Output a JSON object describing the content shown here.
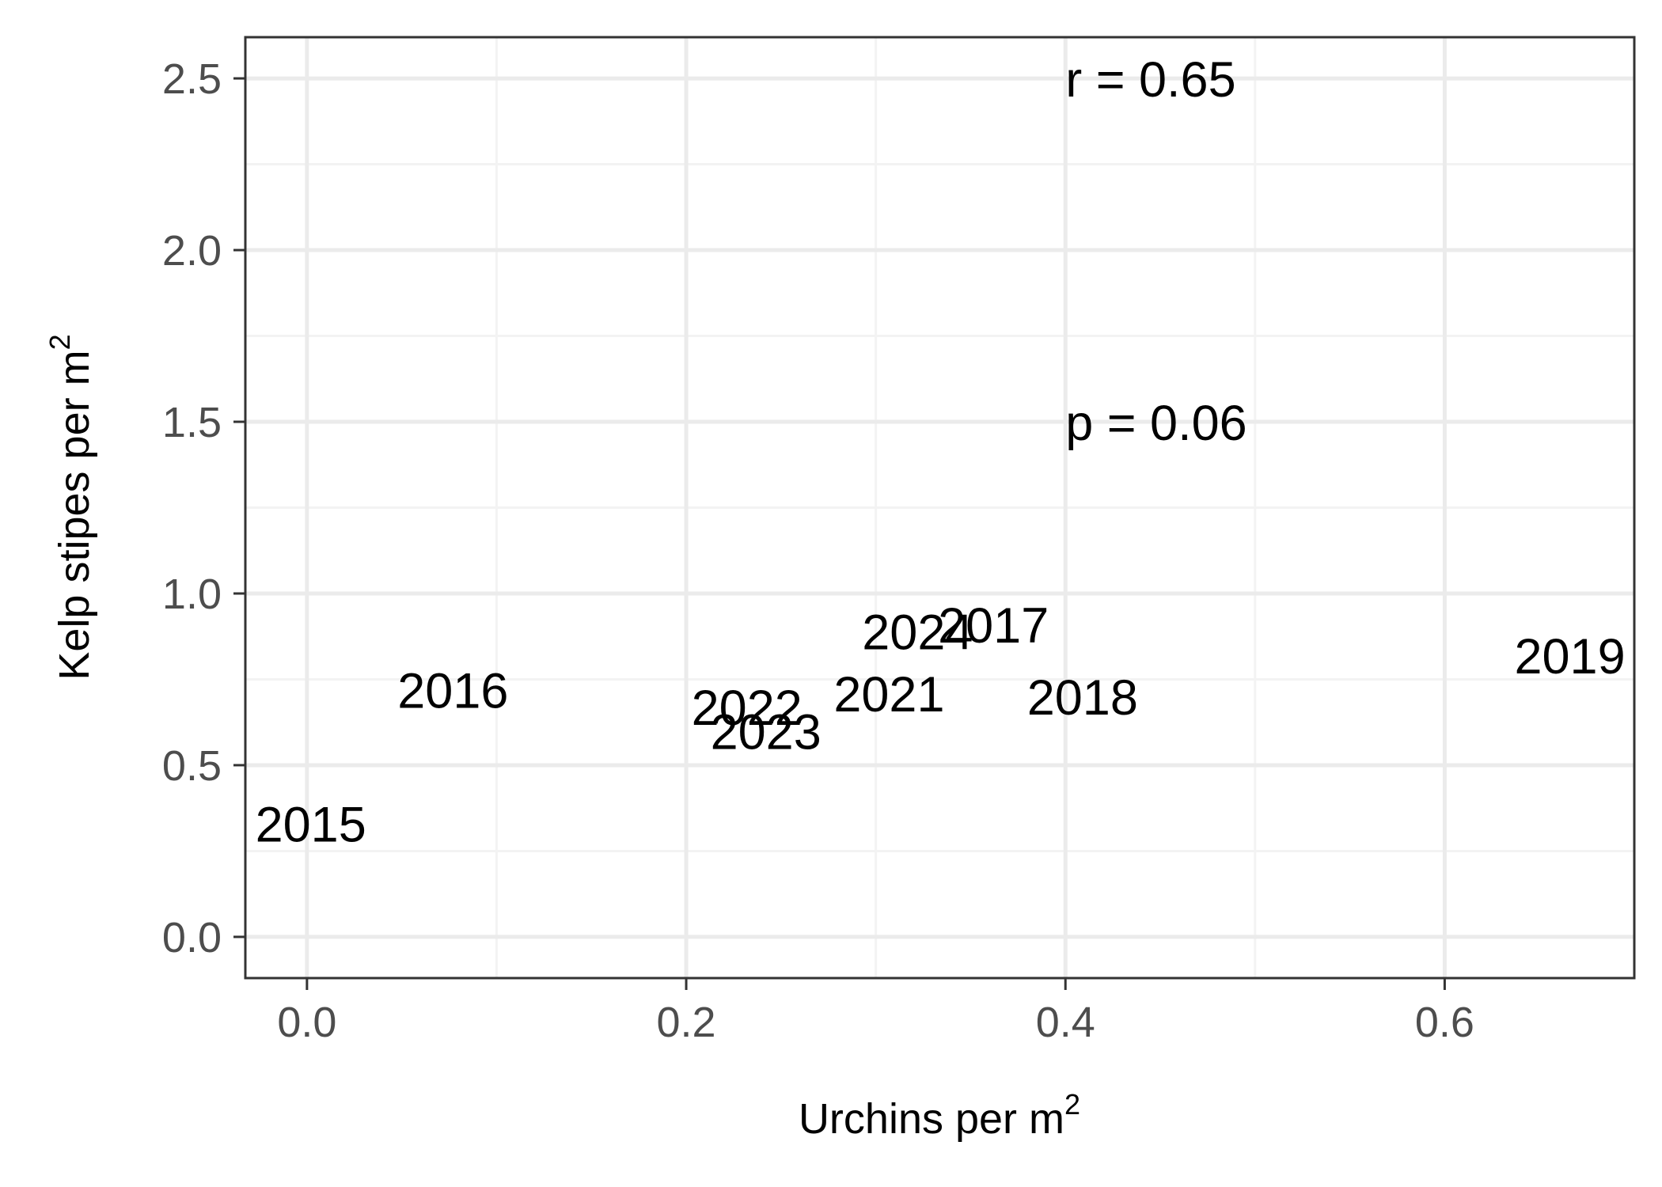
{
  "chart_data": {
    "type": "scatter",
    "title": "",
    "xlabel": "Urchins per m",
    "xlabel_superscript": "2",
    "ylabel": "Kelp stipes per m",
    "ylabel_superscript": "2",
    "xlim": [
      -0.0325,
      0.7
    ],
    "ylim": [
      -0.12,
      2.62
    ],
    "x_ticks": [
      0.0,
      0.2,
      0.4,
      0.6
    ],
    "x_tick_labels": [
      "0.0",
      "0.2",
      "0.4",
      "0.6"
    ],
    "y_ticks": [
      0.0,
      0.5,
      1.0,
      1.5,
      2.0,
      2.5
    ],
    "y_tick_labels": [
      "0.0",
      "0.5",
      "1.0",
      "1.5",
      "2.0",
      "2.5"
    ],
    "grid": true,
    "legend": "none",
    "points": [
      {
        "label": "2015",
        "x": 0.002,
        "y": 0.33
      },
      {
        "label": "2016",
        "x": 0.077,
        "y": 0.72
      },
      {
        "label": "2017",
        "x": 0.362,
        "y": 0.91
      },
      {
        "label": "2018",
        "x": 0.409,
        "y": 0.7
      },
      {
        "label": "2019",
        "x": 0.666,
        "y": 0.82
      },
      {
        "label": "2021",
        "x": 0.307,
        "y": 0.71
      },
      {
        "label": "2022",
        "x": 0.232,
        "y": 0.67
      },
      {
        "label": "2023",
        "x": 0.242,
        "y": 0.6
      },
      {
        "label": "2024",
        "x": 0.322,
        "y": 0.89
      }
    ],
    "annotations": [
      {
        "text": "r = 0.65",
        "x": 0.4,
        "y": 2.5
      },
      {
        "text": "p = 0.06",
        "x": 0.4,
        "y": 1.5
      }
    ],
    "colors": {
      "panel_border": "#333333",
      "grid_major": "#ebebeb",
      "grid_minor": "#f3f3f3",
      "tick_text": "#4d4d4d",
      "label_text": "#000000"
    }
  }
}
